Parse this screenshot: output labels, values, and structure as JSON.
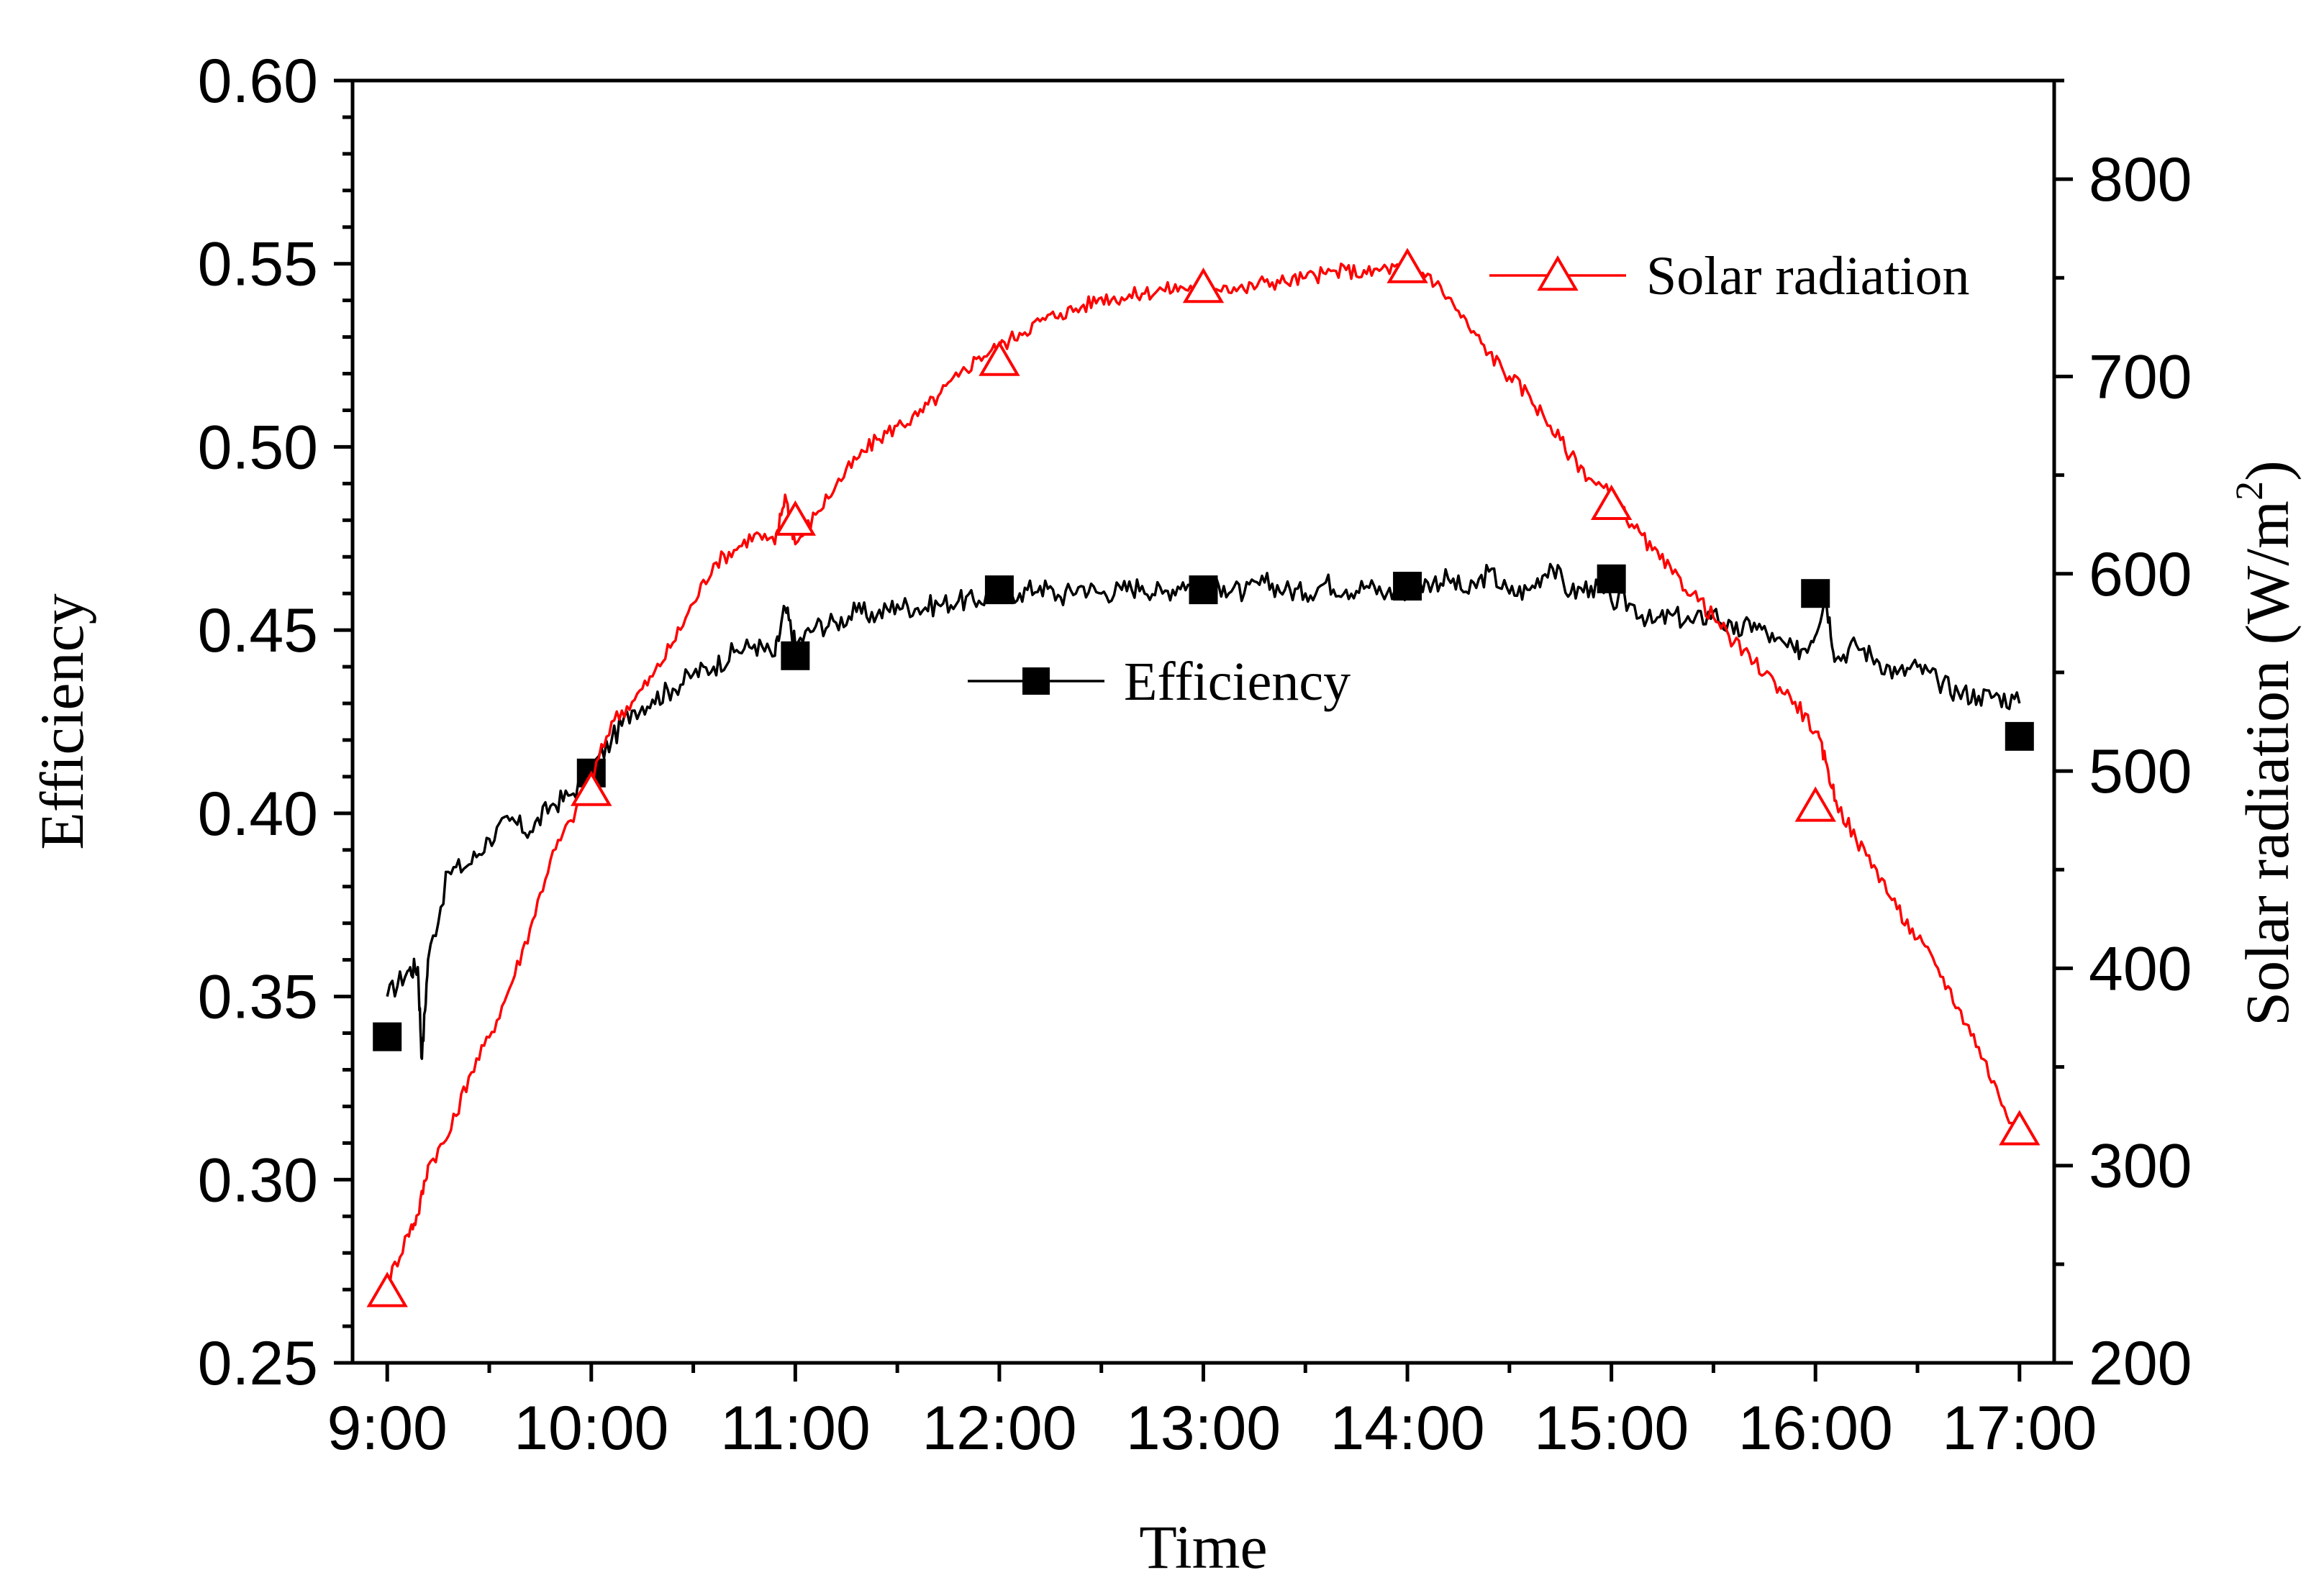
{
  "chart_data": {
    "type": "line",
    "title": "",
    "xlabel": "Time",
    "ylabel_left": "Efficiency",
    "ylabel_right_main": "Solar radiation (W/m",
    "ylabel_right_sup": "2",
    "ylabel_right_close": ")",
    "x_ticks": [
      "9:00",
      "10:00",
      "11:00",
      "12:00",
      "13:00",
      "14:00",
      "15:00",
      "16:00",
      "17:00"
    ],
    "x_range_hours": [
      8.83,
      17.17
    ],
    "ylim_left": [
      0.25,
      0.6
    ],
    "ylim_right": [
      200,
      850
    ],
    "y_ticks_left": [
      "0.25",
      "0.30",
      "0.35",
      "0.40",
      "0.45",
      "0.50",
      "0.55",
      "0.60"
    ],
    "y_ticks_right": [
      "200",
      "300",
      "400",
      "500",
      "600",
      "700",
      "800"
    ],
    "y_ticks_left_values": [
      0.25,
      0.3,
      0.35,
      0.4,
      0.45,
      0.5,
      0.55,
      0.6
    ],
    "y_ticks_right_values": [
      200,
      300,
      400,
      500,
      600,
      700,
      800
    ],
    "series": [
      {
        "name": "Efficiency",
        "axis": "left",
        "color": "#000000",
        "marker": "square",
        "curve_x": [
          9.0,
          9.1,
          9.15,
          9.17,
          9.2,
          9.3,
          9.4,
          9.5,
          9.6,
          9.7,
          9.8,
          9.9,
          10.0,
          10.1,
          10.2,
          10.3,
          10.4,
          10.5,
          10.6,
          10.7,
          10.8,
          10.9,
          10.95,
          11.0,
          11.1,
          11.2,
          11.3,
          11.4,
          11.5,
          11.6,
          11.7,
          11.8,
          11.9,
          12.0,
          12.1,
          12.2,
          12.3,
          12.4,
          12.5,
          12.6,
          12.7,
          12.8,
          12.9,
          13.0,
          13.1,
          13.2,
          13.3,
          13.4,
          13.5,
          13.6,
          13.7,
          13.8,
          13.9,
          14.0,
          14.1,
          14.2,
          14.3,
          14.4,
          14.5,
          14.6,
          14.7,
          14.8,
          14.9,
          15.0,
          15.1,
          15.2,
          15.3,
          15.4,
          15.5,
          15.6,
          15.7,
          15.8,
          15.9,
          15.98,
          16.05,
          16.1,
          16.2,
          16.3,
          16.4,
          16.5,
          16.6,
          16.7,
          16.8,
          16.9,
          17.0
        ],
        "curve_y": [
          0.35,
          0.357,
          0.358,
          0.333,
          0.36,
          0.384,
          0.386,
          0.393,
          0.398,
          0.395,
          0.402,
          0.405,
          0.412,
          0.42,
          0.428,
          0.431,
          0.434,
          0.438,
          0.44,
          0.444,
          0.446,
          0.443,
          0.456,
          0.446,
          0.451,
          0.452,
          0.455,
          0.454,
          0.457,
          0.456,
          0.457,
          0.458,
          0.458,
          0.461,
          0.46,
          0.462,
          0.459,
          0.462,
          0.46,
          0.461,
          0.462,
          0.46,
          0.463,
          0.461,
          0.462,
          0.46,
          0.463,
          0.461,
          0.46,
          0.463,
          0.461,
          0.462,
          0.46,
          0.461,
          0.463,
          0.464,
          0.46,
          0.466,
          0.46,
          0.461,
          0.468,
          0.46,
          0.462,
          0.458,
          0.457,
          0.452,
          0.454,
          0.452,
          0.455,
          0.449,
          0.452,
          0.447,
          0.444,
          0.447,
          0.459,
          0.442,
          0.446,
          0.442,
          0.438,
          0.44,
          0.436,
          0.433,
          0.432,
          0.432,
          0.43
        ],
        "marker_x": [
          9,
          10,
          11,
          12,
          13,
          14,
          15,
          16,
          17
        ],
        "marker_y": [
          0.339,
          0.411,
          0.443,
          0.461,
          0.461,
          0.462,
          0.464,
          0.46,
          0.421
        ]
      },
      {
        "name": "Solar radiation",
        "axis": "right",
        "color": "#ff0000",
        "marker": "triangle",
        "curve_x": [
          9.0,
          9.1,
          9.15,
          9.2,
          9.3,
          9.4,
          9.5,
          9.6,
          9.7,
          9.8,
          9.9,
          10.0,
          10.1,
          10.2,
          10.3,
          10.4,
          10.5,
          10.6,
          10.7,
          10.8,
          10.9,
          10.95,
          11.0,
          11.1,
          11.2,
          11.3,
          11.4,
          11.5,
          11.6,
          11.7,
          11.8,
          11.9,
          12.0,
          12.1,
          12.2,
          12.3,
          12.4,
          12.5,
          12.6,
          12.7,
          12.8,
          12.9,
          13.0,
          13.1,
          13.2,
          13.3,
          13.4,
          13.5,
          13.6,
          13.7,
          13.8,
          13.9,
          14.0,
          14.1,
          14.2,
          14.3,
          14.4,
          14.5,
          14.6,
          14.7,
          14.8,
          14.9,
          15.0,
          15.1,
          15.2,
          15.3,
          15.4,
          15.5,
          15.6,
          15.7,
          15.8,
          15.9,
          16.0,
          16.05,
          16.1,
          16.2,
          16.3,
          16.4,
          16.5,
          16.6,
          16.7,
          16.8,
          16.9,
          17.0
        ],
        "curve_y": [
          240,
          265,
          275,
          300,
          315,
          345,
          365,
          390,
          420,
          455,
          475,
          495,
          525,
          535,
          548,
          565,
          585,
          605,
          612,
          620,
          615,
          640,
          615,
          630,
          645,
          658,
          668,
          675,
          680,
          690,
          700,
          710,
          715,
          722,
          728,
          732,
          735,
          740,
          740,
          742,
          744,
          745,
          745,
          746,
          744,
          748,
          748,
          750,
          752,
          754,
          752,
          755,
          754,
          752,
          740,
          725,
          712,
          700,
          690,
          675,
          660,
          648,
          640,
          625,
          612,
          600,
          590,
          578,
          565,
          555,
          545,
          535,
          520,
          505,
          485,
          465,
          450,
          430,
          415,
          400,
          380,
          360,
          335,
          315
        ],
        "marker_x": [
          9,
          10,
          11,
          12,
          13,
          14,
          15,
          16,
          17
        ],
        "marker_y": [
          236,
          490,
          627,
          708,
          745,
          755,
          635,
          482,
          318
        ]
      }
    ],
    "legend": [
      {
        "label": "Solar radiation",
        "position": "top-right"
      },
      {
        "label": "Efficiency",
        "position": "center"
      }
    ],
    "grid": false
  }
}
